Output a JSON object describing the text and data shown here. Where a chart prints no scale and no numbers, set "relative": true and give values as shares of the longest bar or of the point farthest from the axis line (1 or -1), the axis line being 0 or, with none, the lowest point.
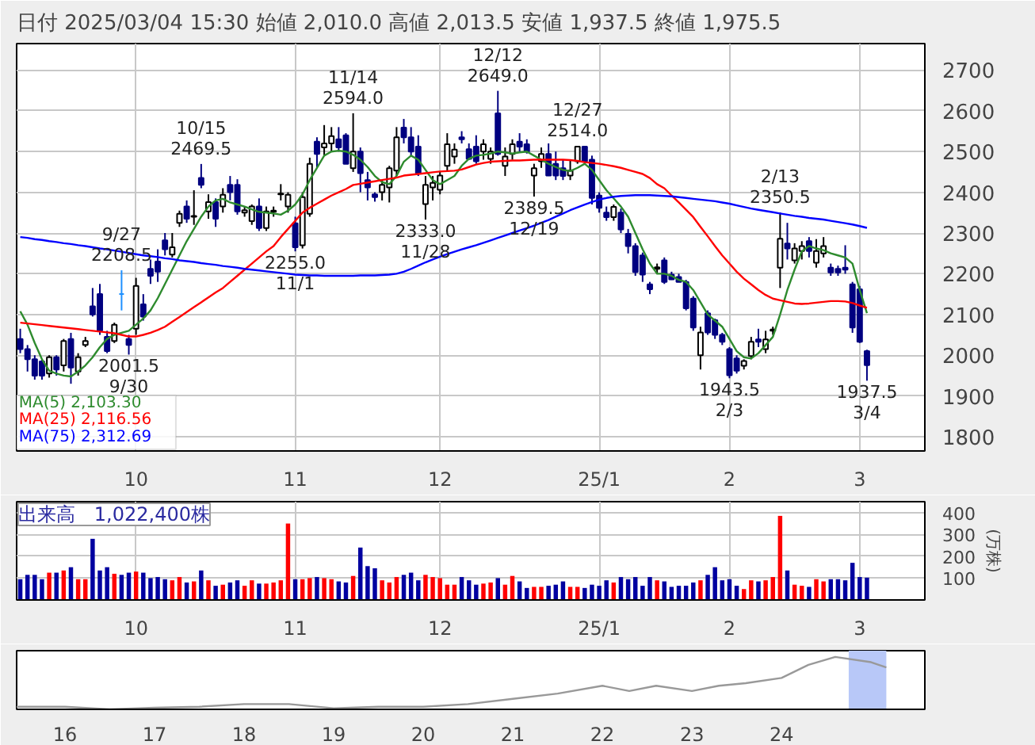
{
  "chart_data": [
    {
      "type": "candlestick",
      "title": "日付 2025/03/04 15:30 始値 2,010.0 高値 2,013.5 安値 1,937.5 終値 1,975.5",
      "categories": [
        null,
        null,
        null,
        null,
        null,
        null,
        null,
        null,
        null,
        null,
        null,
        null,
        null,
        null,
        null,
        null,
        "10",
        null,
        null,
        null,
        null,
        null,
        null,
        null,
        null,
        null,
        null,
        null,
        null,
        null,
        null,
        null,
        null,
        null,
        null,
        null,
        null,
        null,
        "11",
        null,
        null,
        null,
        null,
        null,
        null,
        null,
        null,
        null,
        null,
        null,
        null,
        null,
        null,
        null,
        null,
        null,
        null,
        null,
        "12",
        null,
        null,
        null,
        null,
        null,
        null,
        null,
        null,
        null,
        null,
        null,
        null,
        null,
        null,
        null,
        null,
        null,
        null,
        null,
        null,
        null,
        "25/1",
        null,
        null,
        null,
        null,
        null,
        null,
        null,
        null,
        null,
        null,
        null,
        null,
        null,
        null,
        null,
        null,
        null,
        "2",
        null,
        null,
        null,
        null,
        null,
        null,
        null,
        null,
        null,
        null,
        null,
        null,
        null,
        null,
        null,
        null,
        null,
        "3",
        null
      ],
      "ohlc": [
        [
          2040,
          2065,
          2005,
          2015
        ],
        [
          2015,
          2025,
          1960,
          1990
        ],
        [
          1990,
          2000,
          1940,
          1950
        ],
        [
          1985,
          1990,
          1940,
          1950
        ],
        [
          1955,
          2000,
          1945,
          1995
        ],
        [
          1995,
          2000,
          1950,
          1965
        ],
        [
          1975,
          2040,
          1960,
          2035
        ],
        [
          2040,
          2055,
          1930,
          1970
        ],
        [
          1960,
          2005,
          1950,
          1995
        ],
        [
          2025,
          2045,
          2020,
          2035
        ],
        [
          2120,
          2165,
          2095,
          2100
        ],
        [
          2150,
          2175,
          2050,
          2060
        ],
        [
          2045,
          2060,
          2005,
          2010
        ],
        [
          2035,
          2080,
          2030,
          2075
        ],
        [
          2150,
          2208.5,
          2110,
          2150
        ],
        [
          2040,
          2050,
          2001.5,
          2025
        ],
        [
          2065,
          2190,
          2050,
          2170
        ],
        [
          2125,
          2150,
          2085,
          2095
        ],
        [
          2212,
          2235,
          2175,
          2195
        ],
        [
          2230,
          2260,
          2180,
          2205
        ],
        [
          2282,
          2300,
          2245,
          2260
        ],
        [
          2247,
          2300,
          2240,
          2265
        ],
        [
          2325,
          2355,
          2315,
          2347
        ],
        [
          2365,
          2380,
          2325,
          2335
        ],
        [
          2340,
          2405,
          2320,
          2342
        ],
        [
          2435,
          2469.5,
          2410,
          2418
        ],
        [
          2353,
          2395,
          2335,
          2376
        ],
        [
          2376,
          2385,
          2315,
          2335
        ],
        [
          2365,
          2410,
          2350,
          2394
        ],
        [
          2418,
          2440,
          2380,
          2400
        ],
        [
          2418,
          2432,
          2345,
          2353
        ],
        [
          2350,
          2365,
          2340,
          2356
        ],
        [
          2329,
          2370,
          2320,
          2365
        ],
        [
          2365,
          2385,
          2305,
          2312
        ],
        [
          2312,
          2365,
          2305,
          2353
        ],
        [
          2352,
          2365,
          2340,
          2355
        ],
        [
          2395,
          2420,
          2380,
          2397
        ],
        [
          2365,
          2400,
          2350,
          2394
        ],
        [
          2324,
          2340,
          2255,
          2265
        ],
        [
          2270,
          2400,
          2262,
          2388
        ],
        [
          2347,
          2485,
          2340,
          2470
        ],
        [
          2524,
          2535,
          2460,
          2494
        ],
        [
          2510,
          2565,
          2490,
          2520
        ],
        [
          2520,
          2560,
          2500,
          2538
        ],
        [
          2530,
          2560,
          2500,
          2510
        ],
        [
          2540,
          2545,
          2470,
          2470
        ],
        [
          2459,
          2594,
          2450,
          2500
        ],
        [
          2500,
          2510,
          2400,
          2447
        ],
        [
          2430,
          2450,
          2380,
          2412
        ],
        [
          2395,
          2400,
          2377,
          2388
        ],
        [
          2400,
          2430,
          2380,
          2418
        ],
        [
          2412,
          2465,
          2375,
          2459
        ],
        [
          2453,
          2560,
          2440,
          2535
        ],
        [
          2559,
          2580,
          2520,
          2535
        ],
        [
          2535,
          2560,
          2490,
          2500
        ],
        [
          2512,
          2540,
          2440,
          2447
        ],
        [
          2371,
          2440,
          2333,
          2418
        ],
        [
          2412,
          2440,
          2380,
          2423
        ],
        [
          2406,
          2450,
          2395,
          2441
        ],
        [
          2465,
          2545,
          2450,
          2518
        ],
        [
          2488,
          2520,
          2470,
          2505
        ],
        [
          2535,
          2550,
          2520,
          2530
        ],
        [
          2506,
          2520,
          2480,
          2482
        ],
        [
          2512,
          2540,
          2470,
          2476
        ],
        [
          2500,
          2530,
          2480,
          2518
        ],
        [
          2482,
          2510,
          2470,
          2500
        ],
        [
          2594,
          2649,
          2490,
          2494
        ],
        [
          2465,
          2510,
          2440,
          2488
        ],
        [
          2494,
          2530,
          2480,
          2518
        ],
        [
          2524,
          2545,
          2500,
          2512
        ],
        [
          2518,
          2530,
          2495,
          2500
        ],
        [
          2441,
          2470,
          2389.5,
          2459
        ],
        [
          2476,
          2510,
          2460,
          2494
        ],
        [
          2494,
          2520,
          2440,
          2441
        ],
        [
          2470,
          2500,
          2430,
          2441
        ],
        [
          2459,
          2480,
          2430,
          2440
        ],
        [
          2441,
          2480,
          2430,
          2453
        ],
        [
          2476,
          2514,
          2470,
          2512
        ],
        [
          2512,
          2514,
          2470,
          2476
        ],
        [
          2480,
          2490,
          2370,
          2386
        ],
        [
          2392,
          2400,
          2350,
          2362
        ],
        [
          2350,
          2365,
          2330,
          2339
        ],
        [
          2339,
          2370,
          2330,
          2364
        ],
        [
          2350,
          2360,
          2300,
          2309
        ],
        [
          2298,
          2310,
          2250,
          2268
        ],
        [
          2268,
          2275,
          2195,
          2204
        ],
        [
          2245,
          2252,
          2180,
          2198
        ],
        [
          2174,
          2180,
          2150,
          2162
        ],
        [
          2212,
          2225,
          2200,
          2216
        ],
        [
          2233,
          2240,
          2175,
          2180
        ],
        [
          2198,
          2205,
          2185,
          2186
        ],
        [
          2192,
          2200,
          2180,
          2180
        ],
        [
          2180,
          2185,
          2110,
          2115
        ],
        [
          2139,
          2145,
          2060,
          2068
        ],
        [
          2000,
          2070,
          1965,
          2056
        ],
        [
          2103,
          2110,
          2050,
          2056
        ],
        [
          2086,
          2090,
          2040,
          2050
        ],
        [
          2050,
          2055,
          2025,
          2033
        ],
        [
          2015,
          2020,
          1943.5,
          1951
        ],
        [
          1992,
          2000,
          1955,
          1962
        ],
        [
          1974,
          1990,
          1965,
          1986
        ],
        [
          1998,
          2045,
          1990,
          2033
        ],
        [
          2039,
          2065,
          2020,
          2033
        ],
        [
          2015,
          2060,
          2005,
          2039
        ],
        [
          2060,
          2070,
          2050,
          2063
        ],
        [
          2215,
          2350.5,
          2165,
          2286
        ],
        [
          2274,
          2325,
          2235,
          2262
        ],
        [
          2233,
          2275,
          2225,
          2262
        ],
        [
          2256,
          2280,
          2235,
          2268
        ],
        [
          2280,
          2290,
          2240,
          2256
        ],
        [
          2227,
          2285,
          2215,
          2256
        ],
        [
          2250,
          2290,
          2240,
          2268
        ],
        [
          2215,
          2225,
          2195,
          2203
        ],
        [
          2212,
          2220,
          2195,
          2203
        ],
        [
          2215,
          2270,
          2200,
          2210
        ],
        [
          2174,
          2180,
          2055,
          2068
        ],
        [
          2162,
          2170,
          2030,
          2033
        ],
        [
          2010,
          2013.5,
          1937.5,
          1975.5
        ]
      ],
      "colors": [
        "#000080",
        "#000080",
        "#000080",
        "#000080",
        "#ffffff",
        "#000080",
        "#ffffff",
        "#000080",
        "#ffffff",
        "#ffffff",
        "#000080",
        "#000080",
        "#000080",
        "#ffffff",
        "#1e90ff",
        "#000080",
        "#ffffff",
        "#000080",
        "#000080",
        "#000080",
        "#000080",
        "#ffffff",
        "#ffffff",
        "#000080",
        "#ffffff",
        "#000080",
        "#ffffff",
        "#000080",
        "#ffffff",
        "#000080",
        "#000080",
        "#ffffff",
        "#ffffff",
        "#000080",
        "#ffffff",
        "#ffffff",
        "#ffffff",
        "#ffffff",
        "#000080",
        "#ffffff",
        "#ffffff",
        "#000080",
        "#ffffff",
        "#ffffff",
        "#000080",
        "#000080",
        "#ffffff",
        "#000080",
        "#000080",
        "#000080",
        "#ffffff",
        "#ffffff",
        "#ffffff",
        "#000080",
        "#000080",
        "#000080",
        "#ffffff",
        "#ffffff",
        "#ffffff",
        "#ffffff",
        "#ffffff",
        "#000080",
        "#000080",
        "#000080",
        "#ffffff",
        "#ffffff",
        "#000080",
        "#ffffff",
        "#ffffff",
        "#000080",
        "#000080",
        "#ffffff",
        "#ffffff",
        "#000080",
        "#000080",
        "#000080",
        "#ffffff",
        "#ffffff",
        "#000080",
        "#000080",
        "#000080",
        "#000080",
        "#ffffff",
        "#000080",
        "#000080",
        "#000080",
        "#000080",
        "#000080",
        "#ffffff",
        "#000080",
        "#000080",
        "#000080",
        "#000080",
        "#000080",
        "#ffffff",
        "#000080",
        "#000080",
        "#000080",
        "#000080",
        "#000080",
        "#ffffff",
        "#ffffff",
        "#000080",
        "#ffffff",
        "#ffffff",
        "#ffffff",
        "#000080",
        "#ffffff",
        "#ffffff",
        "#000080",
        "#ffffff",
        "#ffffff",
        "#000080",
        "#000080",
        "#000080",
        "#000080",
        "#000080",
        "#000080"
      ],
      "series": [
        {
          "name": "MA(5)   2,103.30",
          "type": "line",
          "color": "#2e8b2e",
          "values": [
            2108,
            2075,
            2030,
            1990,
            1962,
            1955,
            1950,
            1948,
            1960,
            1975,
            1995,
            2020,
            2040,
            2050,
            2055,
            2060,
            2075,
            2090,
            2110,
            2140,
            2175,
            2210,
            2245,
            2280,
            2310,
            2340,
            2365,
            2380,
            2384,
            2375,
            2370,
            2365,
            2358,
            2352,
            2350,
            2348,
            2345,
            2355,
            2370,
            2395,
            2430,
            2460,
            2490,
            2500,
            2502,
            2500,
            2492,
            2480,
            2462,
            2440,
            2425,
            2420,
            2440,
            2475,
            2490,
            2480,
            2455,
            2430,
            2420,
            2430,
            2440,
            2465,
            2482,
            2490,
            2492,
            2495,
            2500,
            2498,
            2495,
            2498,
            2500,
            2490,
            2480,
            2470,
            2462,
            2455,
            2452,
            2460,
            2470,
            2455,
            2430,
            2405,
            2385,
            2365,
            2340,
            2300,
            2260,
            2225,
            2200,
            2200,
            2195,
            2185,
            2180,
            2160,
            2130,
            2100,
            2085,
            2070,
            2040,
            2010,
            1995,
            1992,
            2005,
            2025,
            2045,
            2100,
            2160,
            2210,
            2255,
            2268,
            2262,
            2258,
            2250,
            2245,
            2240,
            2225,
            2160,
            2103.3
          ]
        },
        {
          "name": "MA(25)  2,116.56",
          "type": "line",
          "color": "#ff0000",
          "values": [
            2080,
            2078,
            2076,
            2074,
            2072,
            2070,
            2068,
            2066,
            2064,
            2062,
            2060,
            2058,
            2056,
            2054,
            2050,
            2046,
            2046,
            2050,
            2055,
            2062,
            2070,
            2082,
            2094,
            2106,
            2118,
            2130,
            2142,
            2154,
            2165,
            2180,
            2195,
            2210,
            2225,
            2240,
            2255,
            2268,
            2290,
            2310,
            2330,
            2350,
            2362,
            2372,
            2382,
            2392,
            2400,
            2408,
            2418,
            2421,
            2424,
            2427,
            2430,
            2433,
            2436,
            2441,
            2443,
            2445,
            2447,
            2449,
            2451,
            2452,
            2453,
            2456,
            2462,
            2468,
            2472,
            2475,
            2476,
            2477,
            2478,
            2478,
            2479,
            2480,
            2480,
            2480,
            2480,
            2480,
            2479,
            2477,
            2474,
            2472,
            2470,
            2467,
            2464,
            2460,
            2455,
            2450,
            2445,
            2435,
            2420,
            2410,
            2392,
            2375,
            2357,
            2339,
            2315,
            2292,
            2268,
            2245,
            2225,
            2205,
            2188,
            2174,
            2160,
            2148,
            2139,
            2135,
            2131,
            2127,
            2126,
            2127,
            2129,
            2131,
            2133,
            2133,
            2132,
            2128,
            2122,
            2116.56
          ]
        },
        {
          "name": "MA(75)  2,312.69",
          "type": "line",
          "color": "#0000ff",
          "values": [
            2290,
            2288,
            2285,
            2283,
            2280,
            2278,
            2275,
            2273,
            2270,
            2268,
            2265,
            2262,
            2260,
            2257,
            2254,
            2251,
            2248,
            2245,
            2243,
            2241,
            2238,
            2236,
            2233,
            2231,
            2229,
            2226,
            2224,
            2222,
            2219,
            2217,
            2215,
            2212,
            2210,
            2208,
            2206,
            2204,
            2202,
            2200,
            2198,
            2197,
            2196,
            2196,
            2195,
            2195,
            2195,
            2195,
            2195,
            2196,
            2196,
            2196,
            2197,
            2198,
            2200,
            2205,
            2212,
            2220,
            2228,
            2235,
            2242,
            2248,
            2254,
            2260,
            2265,
            2270,
            2276,
            2282,
            2288,
            2294,
            2300,
            2306,
            2312,
            2318,
            2325,
            2332,
            2340,
            2348,
            2356,
            2363,
            2370,
            2376,
            2382,
            2386,
            2389,
            2391,
            2392,
            2393,
            2393,
            2393,
            2392,
            2391,
            2390,
            2388,
            2386,
            2384,
            2382,
            2380,
            2378,
            2375,
            2372,
            2368,
            2364,
            2360,
            2357,
            2354,
            2351,
            2348,
            2345,
            2342,
            2340,
            2337,
            2335,
            2333,
            2330,
            2327,
            2324,
            2321,
            2317,
            2312.69
          ]
        }
      ],
      "annotations": [
        {
          "text": "9/27\n2208.5",
          "y": 2208.5
        },
        {
          "text": "2001.5\n9/30",
          "y": 2001.5
        },
        {
          "text": "10/15\n2469.5",
          "y": 2469.5
        },
        {
          "text": "2255.0\n11/1",
          "y": 2255
        },
        {
          "text": "11/14\n2594.0",
          "y": 2594
        },
        {
          "text": "2333.0\n11/28",
          "y": 2333
        },
        {
          "text": "12/12\n2649.0",
          "y": 2649
        },
        {
          "text": "2389.5\n12/19",
          "y": 2389.5
        },
        {
          "text": "12/27\n2514.0",
          "y": 2514
        },
        {
          "text": "1943.5\n2/3",
          "y": 1943.5
        },
        {
          "text": "2/13\n2350.5",
          "y": 2350.5
        },
        {
          "text": "1937.5\n3/4",
          "y": 1937.5
        }
      ],
      "ylim": [
        1765,
        2765
      ],
      "yticks": [
        1800,
        1900,
        2000,
        2100,
        2200,
        2300,
        2400,
        2500,
        2600,
        2700
      ],
      "grid": true,
      "legend": "bottom left"
    },
    {
      "type": "bar",
      "title": "出来高　1,022,400株",
      "ylabel": "(万株)",
      "categories": [
        null,
        null,
        null,
        null,
        null,
        null,
        null,
        null,
        null,
        null,
        null,
        null,
        null,
        null,
        null,
        null,
        "10",
        null,
        null,
        null,
        null,
        null,
        null,
        null,
        null,
        null,
        null,
        null,
        null,
        null,
        null,
        null,
        null,
        null,
        null,
        null,
        null,
        null,
        "11",
        null,
        null,
        null,
        null,
        null,
        null,
        null,
        null,
        null,
        null,
        null,
        null,
        null,
        null,
        null,
        null,
        null,
        null,
        null,
        "12",
        null,
        null,
        null,
        null,
        null,
        null,
        null,
        null,
        null,
        null,
        null,
        null,
        null,
        null,
        null,
        null,
        null,
        null,
        null,
        null,
        null,
        "25/1",
        null,
        null,
        null,
        null,
        null,
        null,
        null,
        null,
        null,
        null,
        null,
        null,
        null,
        null,
        null,
        null,
        null,
        "2",
        null,
        null,
        null,
        null,
        null,
        null,
        null,
        null,
        null,
        null,
        null,
        null,
        null,
        null,
        null,
        null,
        null,
        "3",
        null
      ],
      "values": [
        95,
        115,
        115,
        95,
        125,
        125,
        135,
        150,
        95,
        95,
        280,
        135,
        150,
        120,
        115,
        125,
        130,
        125,
        100,
        105,
        95,
        90,
        105,
        80,
        85,
        135,
        90,
        65,
        70,
        80,
        90,
        65,
        90,
        75,
        75,
        80,
        90,
        350,
        95,
        95,
        100,
        105,
        100,
        95,
        85,
        80,
        110,
        240,
        155,
        145,
        90,
        80,
        105,
        115,
        125,
        90,
        115,
        105,
        100,
        70,
        70,
        105,
        90,
        70,
        75,
        80,
        100,
        70,
        110,
        85,
        55,
        60,
        60,
        65,
        70,
        85,
        60,
        60,
        55,
        70,
        65,
        90,
        80,
        105,
        95,
        105,
        65,
        105,
        90,
        85,
        60,
        65,
        65,
        80,
        90,
        115,
        150,
        90,
        95,
        65,
        50,
        90,
        85,
        90,
        105,
        385,
        135,
        70,
        65,
        60,
        95,
        85,
        95,
        95,
        90,
        170,
        105,
        102.24
      ],
      "colors": [
        "#0000a0",
        "#0000a0",
        "#0000a0",
        "#0000a0",
        "#ff0000",
        "#0000a0",
        "#ff0000",
        "#0000a0",
        "#ff0000",
        "#ff0000",
        "#0000a0",
        "#0000a0",
        "#0000a0",
        "#ff0000",
        "#0000a0",
        "#0000a0",
        "#ff0000",
        "#0000a0",
        "#0000a0",
        "#0000a0",
        "#0000a0",
        "#ff0000",
        "#ff0000",
        "#0000a0",
        "#ff0000",
        "#0000a0",
        "#ff0000",
        "#0000a0",
        "#ff0000",
        "#0000a0",
        "#0000a0",
        "#ff0000",
        "#ff0000",
        "#0000a0",
        "#ff0000",
        "#ff0000",
        "#ff0000",
        "#ff0000",
        "#0000a0",
        "#ff0000",
        "#ff0000",
        "#0000a0",
        "#ff0000",
        "#ff0000",
        "#0000a0",
        "#0000a0",
        "#ff0000",
        "#0000a0",
        "#0000a0",
        "#0000a0",
        "#ff0000",
        "#ff0000",
        "#ff0000",
        "#0000a0",
        "#0000a0",
        "#0000a0",
        "#ff0000",
        "#ff0000",
        "#ff0000",
        "#ff0000",
        "#ff0000",
        "#0000a0",
        "#0000a0",
        "#0000a0",
        "#ff0000",
        "#ff0000",
        "#0000a0",
        "#ff0000",
        "#ff0000",
        "#0000a0",
        "#0000a0",
        "#ff0000",
        "#ff0000",
        "#0000a0",
        "#0000a0",
        "#0000a0",
        "#ff0000",
        "#ff0000",
        "#0000a0",
        "#0000a0",
        "#0000a0",
        "#0000a0",
        "#ff0000",
        "#0000a0",
        "#0000a0",
        "#0000a0",
        "#0000a0",
        "#0000a0",
        "#ff0000",
        "#0000a0",
        "#0000a0",
        "#0000a0",
        "#0000a0",
        "#0000a0",
        "#ff0000",
        "#0000a0",
        "#0000a0",
        "#0000a0",
        "#0000a0",
        "#0000a0",
        "#ff0000",
        "#ff0000",
        "#0000a0",
        "#ff0000",
        "#ff0000",
        "#ff0000",
        "#0000a0",
        "#ff0000",
        "#ff0000",
        "#0000a0",
        "#ff0000",
        "#ff0000",
        "#0000a0",
        "#0000a0",
        "#0000a0",
        "#0000a0",
        "#0000a0",
        "#0000a0"
      ],
      "ylim": [
        0,
        450
      ],
      "yticks": [
        100,
        200,
        300,
        400
      ],
      "grid": true
    },
    {
      "type": "line",
      "relative": true,
      "tick_labels": "x",
      "color": "#999999",
      "x": [
        15.46,
        16,
        16.5,
        17,
        17.5,
        18,
        18.5,
        19,
        19.5,
        20,
        20.5,
        21,
        21.5,
        22,
        22.3,
        22.6,
        23,
        23.3,
        23.6,
        24,
        24.3,
        24.6,
        25,
        25.17
      ],
      "values": [
        0.05,
        0.05,
        0,
        0.03,
        0.05,
        0.1,
        0.1,
        0.02,
        0.05,
        0.05,
        0.1,
        0.2,
        0.3,
        0.45,
        0.35,
        0.45,
        0.35,
        0.45,
        0.5,
        0.6,
        0.85,
        1,
        0.9,
        0.8
      ],
      "xlim": [
        15.46,
        25.6
      ],
      "xticks": [
        16,
        17,
        18,
        19,
        20,
        21,
        22,
        23,
        24
      ],
      "bands": [
        {
          "axis": "x",
          "from": 24.75,
          "to": 25.17,
          "color": "#b8c8f8"
        }
      ]
    }
  ]
}
